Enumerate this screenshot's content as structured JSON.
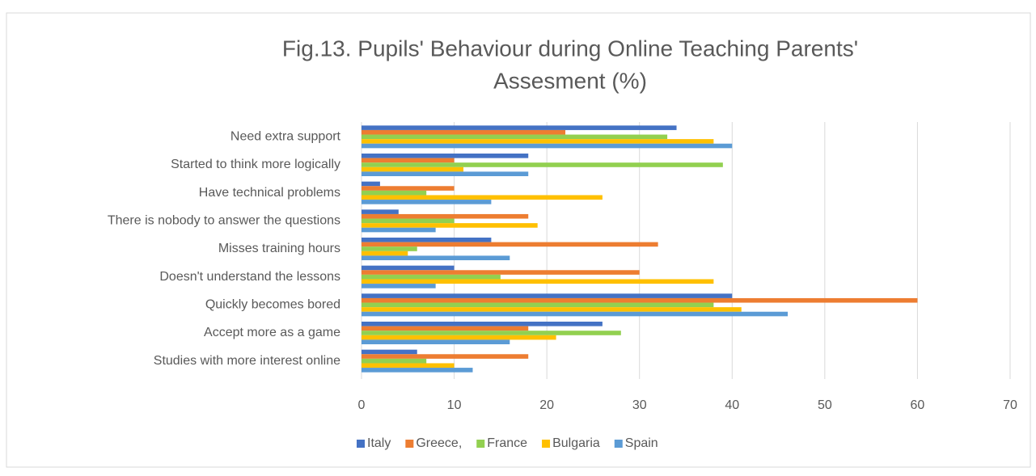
{
  "chart_data": {
    "type": "bar",
    "orientation": "horizontal",
    "title": [
      "Fig.13. Pupils' Behaviour during Online Teaching Parents'",
      "Assesment (%)"
    ],
    "categories": [
      "Need extra support ",
      "Started to think more logically",
      "Have technical problems ",
      "There is nobody to answer the questions",
      "Misses training hours",
      "Doesn't understand the lessons",
      "Quickly becomes bored",
      "Accept more as a game",
      "Studies with more interest online"
    ],
    "series": [
      {
        "name": "Italy",
        "color": "#4472c4",
        "values": [
          34,
          18,
          2,
          4,
          14,
          10,
          40,
          26,
          6
        ]
      },
      {
        "name": "Greece,",
        "color": "#ed7d31",
        "values": [
          22,
          10,
          10,
          18,
          32,
          30,
          60,
          18,
          18
        ]
      },
      {
        "name": "France",
        "color": "#92d050",
        "values": [
          33,
          39,
          7,
          10,
          6,
          15,
          38,
          28,
          7
        ]
      },
      {
        "name": "Bulgaria",
        "color": "#ffc000",
        "values": [
          38,
          11,
          26,
          19,
          5,
          38,
          41,
          21,
          10
        ]
      },
      {
        "name": "Spain",
        "color": "#5b9bd5",
        "values": [
          40,
          18,
          14,
          8,
          16,
          8,
          46,
          16,
          12
        ]
      }
    ],
    "xlim": [
      0,
      70
    ],
    "xticks": [
      0,
      10,
      20,
      30,
      40,
      50,
      60,
      70
    ],
    "grid": true,
    "legend": "bottom"
  }
}
